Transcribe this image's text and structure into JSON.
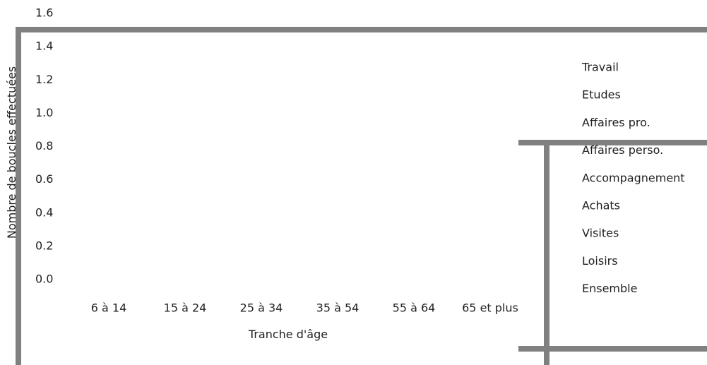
{
  "chart_data": {
    "type": "bar",
    "title": "",
    "xlabel": "Tranche d'âge",
    "ylabel": "Nombre de boucles effectuées",
    "ylim": [
      0.0,
      1.6
    ],
    "y_ticks": [
      "0.0",
      "0.2",
      "0.4",
      "0.6",
      "0.8",
      "1.0",
      "1.2",
      "1.4",
      "1.6"
    ],
    "categories": [
      "6 à 14",
      "15 à 24",
      "25 à 34",
      "35 à 54",
      "55 à 64",
      "65 et plus"
    ],
    "series": [
      {
        "name": "Travail",
        "values": [
          null,
          null,
          null,
          null,
          null,
          null
        ]
      },
      {
        "name": "Etudes",
        "values": [
          null,
          null,
          null,
          null,
          null,
          null
        ]
      },
      {
        "name": "Affaires pro.",
        "values": [
          null,
          null,
          null,
          null,
          null,
          null
        ]
      },
      {
        "name": "Affaires perso.",
        "values": [
          null,
          null,
          null,
          null,
          null,
          null
        ]
      },
      {
        "name": "Accompagnement",
        "values": [
          null,
          null,
          null,
          null,
          null,
          null
        ]
      },
      {
        "name": "Achats",
        "values": [
          null,
          null,
          null,
          null,
          null,
          null
        ]
      },
      {
        "name": "Visites",
        "values": [
          null,
          null,
          null,
          null,
          null,
          null
        ]
      },
      {
        "name": "Loisirs",
        "values": [
          null,
          null,
          null,
          null,
          null,
          null
        ]
      },
      {
        "name": "Ensemble",
        "values": [
          null,
          null,
          null,
          null,
          null,
          null
        ]
      }
    ],
    "legend_position": "right",
    "grid": false,
    "frame_color": "#808080",
    "text_color": "#1f1f1f"
  }
}
